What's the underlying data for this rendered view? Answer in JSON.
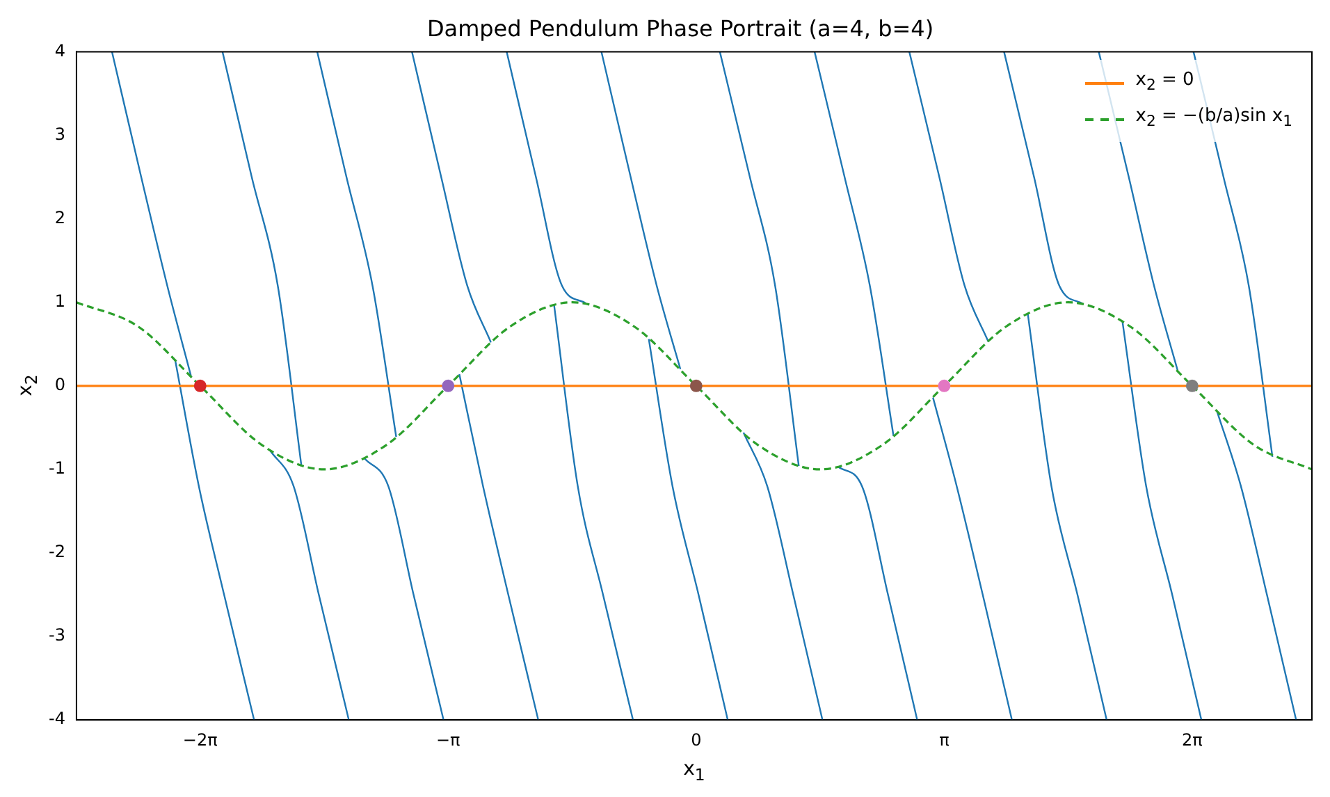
{
  "chart_data": {
    "type": "line",
    "title": "Damped Pendulum Phase Portrait (a=4, b=4)",
    "xlabel": "x$_{1}$",
    "ylabel": "x$_{2}$",
    "xlim": [
      -7.85,
      7.8
    ],
    "ylim": [
      -4,
      4
    ],
    "xticks": [
      {
        "value": -6.283,
        "label": "−2π"
      },
      {
        "value": -3.142,
        "label": "−π"
      },
      {
        "value": 0,
        "label": "0"
      },
      {
        "value": 3.142,
        "label": "π"
      },
      {
        "value": 6.283,
        "label": "2π"
      }
    ],
    "yticks": [
      -4,
      -3,
      -2,
      -1,
      0,
      1,
      2,
      3,
      4
    ],
    "grid": false,
    "legend": "top right",
    "series": [
      {
        "color": "#1f77b4",
        "x": [
          -7.4,
          -7.03,
          -6.7,
          -6.4
        ],
        "values": [
          4,
          2.5,
          1.2,
          0.12
        ]
      },
      {
        "color": "#1f77b4",
        "x": [
          -6.0,
          -5.63,
          -5.3,
          -5.0
        ],
        "values": [
          4,
          2.5,
          1.2,
          -0.96
        ]
      },
      {
        "color": "#1f77b4",
        "x": [
          -4.8,
          -4.43,
          -4.1,
          -3.8
        ],
        "values": [
          4,
          2.5,
          1.2,
          -0.61
        ]
      },
      {
        "color": "#1f77b4",
        "x": [
          -3.6,
          -3.23,
          -2.9,
          -2.6
        ],
        "values": [
          4,
          2.5,
          1.2,
          0.52
        ]
      },
      {
        "color": "#1f77b4",
        "x": [
          -2.4,
          -2.03,
          -1.7,
          -1.4
        ],
        "values": [
          4,
          2.5,
          1.2,
          0.99
        ]
      },
      {
        "color": "#1f77b4",
        "x": [
          -1.2,
          -0.83,
          -0.5,
          -0.2
        ],
        "values": [
          4,
          2.5,
          1.2,
          0.2
        ]
      },
      {
        "color": "#1f77b4",
        "x": [
          0.3,
          0.68,
          1.0,
          1.3
        ],
        "values": [
          4,
          2.5,
          1.2,
          -0.96
        ]
      },
      {
        "color": "#1f77b4",
        "x": [
          1.5,
          1.88,
          2.2,
          2.5
        ],
        "values": [
          4,
          2.5,
          1.2,
          -0.6
        ]
      },
      {
        "color": "#1f77b4",
        "x": [
          2.7,
          3.08,
          3.4,
          3.7
        ],
        "values": [
          4,
          2.5,
          1.2,
          0.53
        ]
      },
      {
        "color": "#1f77b4",
        "x": [
          3.9,
          4.28,
          4.6,
          4.9
        ],
        "values": [
          4,
          2.5,
          1.2,
          0.98
        ]
      },
      {
        "color": "#1f77b4",
        "x": [
          5.1,
          5.48,
          5.8,
          6.1
        ],
        "values": [
          4,
          2.5,
          1.2,
          0.18
        ]
      },
      {
        "color": "#1f77b4",
        "x": [
          6.3,
          6.68,
          7.0,
          7.3
        ],
        "values": [
          4,
          2.5,
          1.2,
          -0.85
        ]
      },
      {
        "color": "#1f77b4",
        "x": [
          -5.6,
          -5.98,
          -6.3,
          -6.6
        ],
        "values": [
          -4,
          -2.5,
          -1.2,
          0.31
        ]
      },
      {
        "color": "#1f77b4",
        "x": [
          -4.4,
          -4.78,
          -5.1,
          -5.4
        ],
        "values": [
          -4,
          -2.5,
          -1.2,
          -0.77
        ]
      },
      {
        "color": "#1f77b4",
        "x": [
          -3.2,
          -3.58,
          -3.9,
          -4.2
        ],
        "values": [
          -4,
          -2.5,
          -1.2,
          -0.87
        ]
      },
      {
        "color": "#1f77b4",
        "x": [
          -2.0,
          -2.38,
          -2.7,
          -3.0
        ],
        "values": [
          -4,
          -2.5,
          -1.2,
          0.14
        ]
      },
      {
        "color": "#1f77b4",
        "x": [
          -0.8,
          -1.18,
          -1.5,
          -1.8
        ],
        "values": [
          -4,
          -2.5,
          -1.2,
          0.97
        ]
      },
      {
        "color": "#1f77b4",
        "x": [
          0.4,
          0.03,
          -0.3,
          -0.6
        ],
        "values": [
          -4,
          -2.5,
          -1.2,
          0.56
        ]
      },
      {
        "color": "#1f77b4",
        "x": [
          1.6,
          1.23,
          0.9,
          0.6
        ],
        "values": [
          -4,
          -2.5,
          -1.2,
          -0.56
        ]
      },
      {
        "color": "#1f77b4",
        "x": [
          2.8,
          2.43,
          2.1,
          1.8
        ],
        "values": [
          -4,
          -2.5,
          -1.2,
          -0.97
        ]
      },
      {
        "color": "#1f77b4",
        "x": [
          4.0,
          3.63,
          3.3,
          3.0
        ],
        "values": [
          -4,
          -2.5,
          -1.2,
          -0.14
        ]
      },
      {
        "color": "#1f77b4",
        "x": [
          5.2,
          4.83,
          4.5,
          4.2
        ],
        "values": [
          -4,
          -2.5,
          -1.2,
          0.87
        ]
      },
      {
        "color": "#1f77b4",
        "x": [
          6.4,
          6.03,
          5.7,
          5.4
        ],
        "values": [
          -4,
          -2.5,
          -1.2,
          0.77
        ]
      },
      {
        "color": "#1f77b4",
        "x": [
          7.6,
          7.23,
          6.9,
          6.6
        ],
        "values": [
          -4,
          -2.5,
          -1.2,
          -0.31
        ]
      },
      {
        "name": "x$_{2}$ = 0",
        "color": "#ff7f0e",
        "x": [
          -7.85,
          7.8
        ],
        "values": [
          0,
          0
        ]
      },
      {
        "name": "x$_{2}$ = −(b/a)sin x$_{1}$",
        "color": "#2ca02c",
        "line_style": "dashed",
        "x": [
          -7.85,
          -7.069,
          -6.283,
          -5.498,
          -4.712,
          -3.927,
          -3.142,
          -2.356,
          -1.571,
          -0.785,
          0,
          0.785,
          1.571,
          2.356,
          3.142,
          3.927,
          4.712,
          5.498,
          6.283,
          7.069,
          7.8
        ],
        "values": [
          1,
          0.71,
          0,
          -0.71,
          -1,
          -0.71,
          0,
          0.71,
          1,
          0.71,
          0,
          -0.71,
          -1,
          -0.71,
          0,
          0.71,
          1,
          0.71,
          0,
          -0.71,
          -1
        ]
      },
      {
        "type": "scatter",
        "marker": "circle",
        "color": "#d62728",
        "x": [
          -6.283
        ],
        "values": [
          0
        ]
      },
      {
        "type": "scatter",
        "marker": "circle",
        "color": "#9467bd",
        "x": [
          -3.142
        ],
        "values": [
          0
        ]
      },
      {
        "type": "scatter",
        "marker": "circle",
        "color": "#8c564b",
        "x": [
          0
        ],
        "values": [
          0
        ]
      },
      {
        "type": "scatter",
        "marker": "circle",
        "color": "#e377c2",
        "x": [
          3.142
        ],
        "values": [
          0
        ]
      },
      {
        "type": "scatter",
        "marker": "circle",
        "color": "#7f7f7f",
        "x": [
          6.283
        ],
        "values": [
          0
        ]
      }
    ]
  }
}
